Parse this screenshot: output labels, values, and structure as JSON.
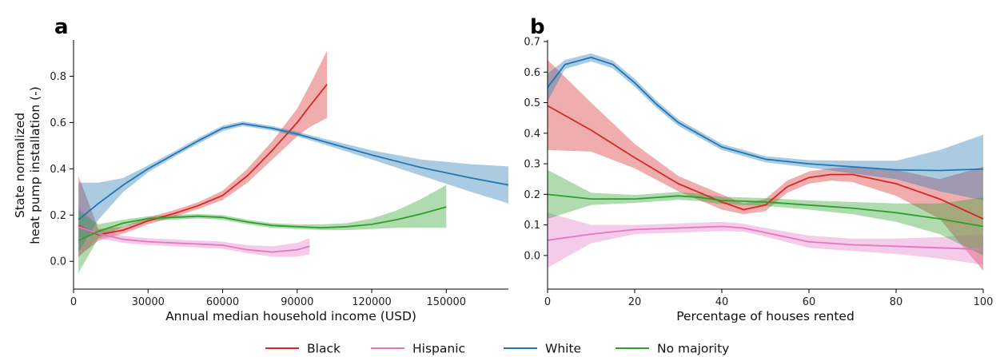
{
  "chart_data": [
    {
      "panel_label": "a",
      "type": "line",
      "xlabel": "Annual median household income (USD)",
      "ylabel_lines": [
        "State normalized",
        "heat pump installation (-)"
      ],
      "xlim": [
        0,
        175000
      ],
      "ylim": [
        -0.12,
        0.95
      ],
      "xticks": [
        0,
        30000,
        60000,
        90000,
        120000,
        150000
      ],
      "xtick_labels": [
        "0",
        "30000",
        "60000",
        "90000",
        "120000",
        "150000"
      ],
      "yticks": [
        0.0,
        0.2,
        0.4,
        0.6,
        0.8
      ],
      "ytick_labels": [
        "0.0",
        "0.2",
        "0.4",
        "0.6",
        "0.8"
      ],
      "series": [
        {
          "color": "#d62728",
          "x": [
            2000,
            10000,
            20000,
            30000,
            40000,
            50000,
            60000,
            70000,
            80000,
            90000,
            95000,
            102000
          ],
          "y": [
            0.155,
            0.115,
            0.135,
            0.175,
            0.205,
            0.24,
            0.285,
            0.37,
            0.48,
            0.6,
            0.67,
            0.765
          ],
          "lower": [
            0.02,
            0.09,
            0.12,
            0.16,
            0.19,
            0.225,
            0.265,
            0.34,
            0.44,
            0.54,
            0.58,
            0.62
          ],
          "upper": [
            0.37,
            0.14,
            0.15,
            0.19,
            0.22,
            0.255,
            0.305,
            0.4,
            0.52,
            0.66,
            0.76,
            0.91
          ]
        },
        {
          "color": "#e377c2",
          "x": [
            2000,
            10000,
            20000,
            30000,
            40000,
            50000,
            60000,
            70000,
            80000,
            90000,
            95000
          ],
          "y": [
            0.15,
            0.12,
            0.095,
            0.085,
            0.08,
            0.075,
            0.07,
            0.05,
            0.04,
            0.05,
            0.065
          ],
          "lower": [
            0.02,
            0.1,
            0.08,
            0.07,
            0.065,
            0.06,
            0.055,
            0.035,
            0.02,
            0.02,
            0.03
          ],
          "upper": [
            0.24,
            0.14,
            0.11,
            0.1,
            0.095,
            0.09,
            0.085,
            0.07,
            0.065,
            0.08,
            0.1
          ]
        },
        {
          "color": "#1f77b4",
          "x": [
            2000,
            10000,
            20000,
            30000,
            40000,
            50000,
            60000,
            68000,
            80000,
            90000,
            100000,
            120000,
            140000,
            160000,
            175000
          ],
          "y": [
            0.18,
            0.25,
            0.33,
            0.4,
            0.46,
            0.52,
            0.575,
            0.595,
            0.575,
            0.55,
            0.52,
            0.46,
            0.405,
            0.36,
            0.33
          ],
          "lower": [
            0.04,
            0.18,
            0.3,
            0.385,
            0.448,
            0.508,
            0.563,
            0.585,
            0.565,
            0.54,
            0.508,
            0.44,
            0.37,
            0.3,
            0.25
          ],
          "upper": [
            0.34,
            0.34,
            0.36,
            0.415,
            0.472,
            0.532,
            0.587,
            0.605,
            0.585,
            0.56,
            0.532,
            0.48,
            0.44,
            0.42,
            0.41
          ]
        },
        {
          "color": "#2ca02c",
          "x": [
            2000,
            10000,
            20000,
            30000,
            40000,
            50000,
            60000,
            70000,
            80000,
            90000,
            100000,
            110000,
            120000,
            130000,
            140000,
            150000
          ],
          "y": [
            0.09,
            0.13,
            0.165,
            0.185,
            0.19,
            0.195,
            0.19,
            0.17,
            0.155,
            0.15,
            0.145,
            0.15,
            0.16,
            0.18,
            0.205,
            0.235
          ],
          "lower": [
            -0.05,
            0.1,
            0.15,
            0.175,
            0.18,
            0.185,
            0.18,
            0.16,
            0.145,
            0.14,
            0.135,
            0.135,
            0.14,
            0.145,
            0.145,
            0.145
          ],
          "upper": [
            0.22,
            0.16,
            0.18,
            0.195,
            0.2,
            0.205,
            0.2,
            0.18,
            0.165,
            0.16,
            0.16,
            0.165,
            0.185,
            0.22,
            0.27,
            0.33
          ]
        }
      ]
    },
    {
      "panel_label": "b",
      "type": "line",
      "xlabel": "Percentage of houses rented",
      "xlim": [
        0,
        100
      ],
      "ylim": [
        -0.11,
        0.7
      ],
      "xticks": [
        0,
        20,
        40,
        60,
        80,
        100
      ],
      "xtick_labels": [
        "0",
        "20",
        "40",
        "60",
        "80",
        "100"
      ],
      "yticks": [
        0.0,
        0.1,
        0.2,
        0.3,
        0.4,
        0.5,
        0.6,
        0.7
      ],
      "ytick_labels": [
        "0.0",
        "0.1",
        "0.2",
        "0.3",
        "0.4",
        "0.5",
        "0.6",
        "0.7"
      ],
      "series": [
        {
          "color": "#d62728",
          "x": [
            0,
            10,
            20,
            30,
            40,
            45,
            50,
            55,
            60,
            65,
            70,
            80,
            90,
            100
          ],
          "y": [
            0.49,
            0.41,
            0.32,
            0.235,
            0.175,
            0.15,
            0.165,
            0.225,
            0.255,
            0.265,
            0.265,
            0.235,
            0.185,
            0.12
          ],
          "lower": [
            0.345,
            0.34,
            0.285,
            0.21,
            0.15,
            0.135,
            0.145,
            0.205,
            0.235,
            0.245,
            0.24,
            0.195,
            0.12,
            -0.05
          ],
          "upper": [
            0.64,
            0.5,
            0.365,
            0.26,
            0.2,
            0.17,
            0.185,
            0.245,
            0.275,
            0.285,
            0.29,
            0.28,
            0.25,
            0.29
          ]
        },
        {
          "color": "#e377c2",
          "x": [
            0,
            10,
            20,
            30,
            40,
            45,
            50,
            60,
            70,
            80,
            90,
            100
          ],
          "y": [
            0.05,
            0.07,
            0.085,
            0.09,
            0.095,
            0.09,
            0.075,
            0.045,
            0.035,
            0.03,
            0.025,
            0.02
          ],
          "lower": [
            -0.04,
            0.04,
            0.07,
            0.075,
            0.08,
            0.078,
            0.062,
            0.025,
            0.015,
            0.005,
            -0.01,
            -0.03
          ],
          "upper": [
            0.14,
            0.1,
            0.1,
            0.105,
            0.11,
            0.104,
            0.09,
            0.065,
            0.055,
            0.055,
            0.06,
            0.07
          ]
        },
        {
          "color": "#1f77b4",
          "x": [
            0,
            4,
            10,
            15,
            20,
            25,
            30,
            40,
            50,
            60,
            70,
            80,
            90,
            100
          ],
          "y": [
            0.55,
            0.625,
            0.648,
            0.625,
            0.565,
            0.495,
            0.435,
            0.355,
            0.315,
            0.3,
            0.29,
            0.28,
            0.278,
            0.283
          ],
          "lower": [
            0.505,
            0.61,
            0.635,
            0.612,
            0.552,
            0.483,
            0.424,
            0.345,
            0.305,
            0.288,
            0.268,
            0.25,
            0.21,
            0.18
          ],
          "upper": [
            0.595,
            0.64,
            0.661,
            0.638,
            0.578,
            0.507,
            0.446,
            0.365,
            0.325,
            0.312,
            0.31,
            0.31,
            0.345,
            0.395
          ]
        },
        {
          "color": "#2ca02c",
          "x": [
            0,
            10,
            20,
            30,
            35,
            40,
            50,
            60,
            70,
            80,
            90,
            100
          ],
          "y": [
            0.2,
            0.185,
            0.185,
            0.195,
            0.19,
            0.18,
            0.175,
            0.165,
            0.155,
            0.14,
            0.12,
            0.095
          ],
          "lower": [
            0.12,
            0.165,
            0.172,
            0.182,
            0.178,
            0.168,
            0.162,
            0.15,
            0.135,
            0.11,
            0.07,
            0.0
          ],
          "upper": [
            0.28,
            0.205,
            0.198,
            0.208,
            0.202,
            0.192,
            0.188,
            0.18,
            0.175,
            0.17,
            0.17,
            0.19
          ]
        }
      ]
    }
  ],
  "legend": {
    "placement": "bottom-center",
    "items": [
      {
        "label": "Black",
        "color": "#d62728"
      },
      {
        "label": "Hispanic",
        "color": "#e377c2"
      },
      {
        "label": "White",
        "color": "#1f77b4"
      },
      {
        "label": "No majority",
        "color": "#2ca02c"
      }
    ]
  }
}
